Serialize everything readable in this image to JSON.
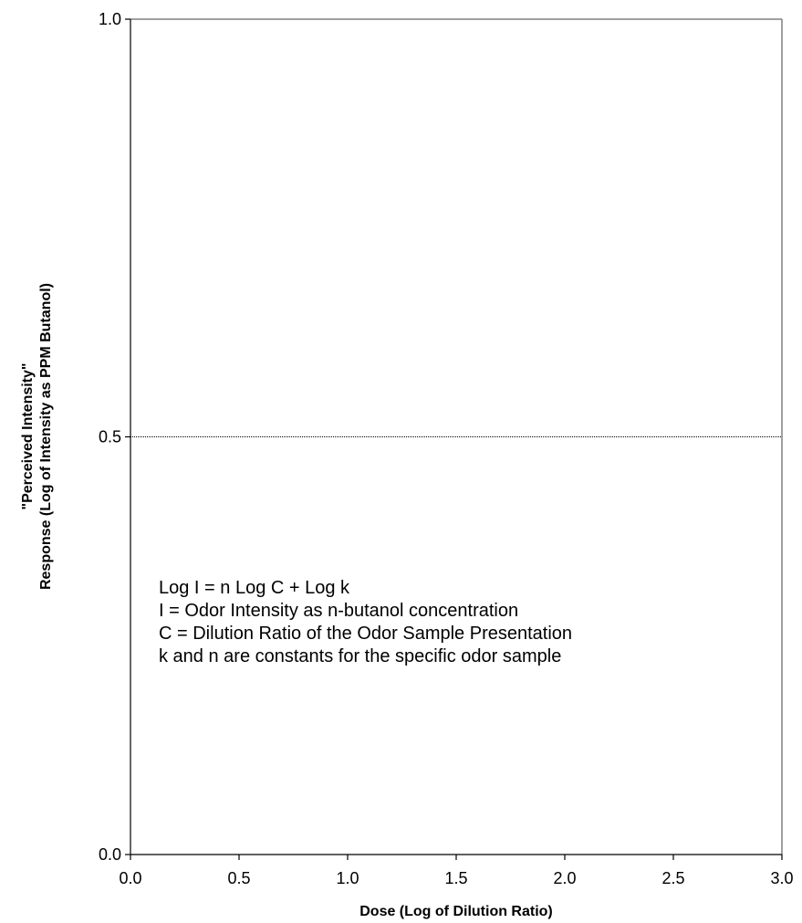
{
  "chart_data": {
    "type": "line",
    "title": "",
    "xlabel": "Dose (Log of Dilution Ratio)",
    "ylabel_lines": [
      "\"Perceived Intensity\"",
      "Response (Log of Intensity as PPM Butanol)"
    ],
    "xlim": [
      0,
      3
    ],
    "ylim": [
      0,
      1
    ],
    "x_ticks": [
      "0.0",
      "0.5",
      "1.0",
      "1.5",
      "2.0",
      "2.5",
      "3.0"
    ],
    "y_ticks": [
      "0.0",
      "0.5",
      "1.0"
    ],
    "grid": "horizontal gridline at 0.5",
    "series": [],
    "annotation_lines": [
      "Log I = n Log C + Log k",
      "I = Odor Intensity as n-butanol concentration",
      "C = Dilution Ratio of the Odor Sample Presentation",
      "k and n are constants for the specific odor sample"
    ],
    "colors": {
      "axis": "#000000",
      "frame": "#808080",
      "grid": "#000000"
    }
  }
}
